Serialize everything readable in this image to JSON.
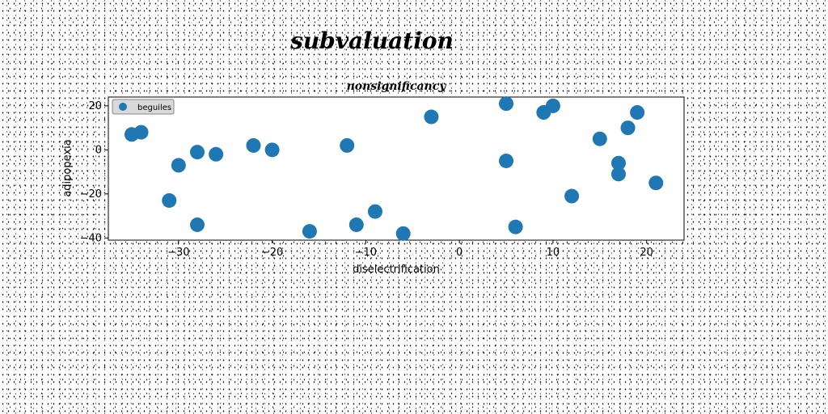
{
  "suptitle": "subvaluation",
  "chart_data": {
    "type": "scatter",
    "title": "nonsignificancy",
    "xlabel": "diselectrification",
    "ylabel": "adipopexia",
    "xlim": [
      -37.5,
      24
    ],
    "ylim": [
      -41,
      24
    ],
    "xticks": [
      -30,
      -20,
      -10,
      0,
      10,
      20
    ],
    "yticks": [
      -40,
      -20,
      0,
      20
    ],
    "grid": false,
    "legend_position": "top-left",
    "series": [
      {
        "name": "beguiles",
        "color": "#1f77b4",
        "points": [
          [
            -35,
            7
          ],
          [
            -34,
            8
          ],
          [
            -31,
            -23
          ],
          [
            -30,
            -7
          ],
          [
            -28,
            -1
          ],
          [
            -28,
            -34
          ],
          [
            -26,
            -2
          ],
          [
            -22,
            2
          ],
          [
            -20,
            0
          ],
          [
            -16,
            -37
          ],
          [
            -12,
            2
          ],
          [
            -11,
            -34
          ],
          [
            -9,
            -28
          ],
          [
            -6,
            -38
          ],
          [
            -3,
            15
          ],
          [
            5,
            21
          ],
          [
            5,
            -5
          ],
          [
            6,
            -35
          ],
          [
            9,
            17
          ],
          [
            10,
            20
          ],
          [
            12,
            -21
          ],
          [
            15,
            5
          ],
          [
            17,
            -6
          ],
          [
            17,
            -11
          ],
          [
            18,
            10
          ],
          [
            19,
            17
          ],
          [
            21,
            -15
          ]
        ]
      }
    ]
  }
}
